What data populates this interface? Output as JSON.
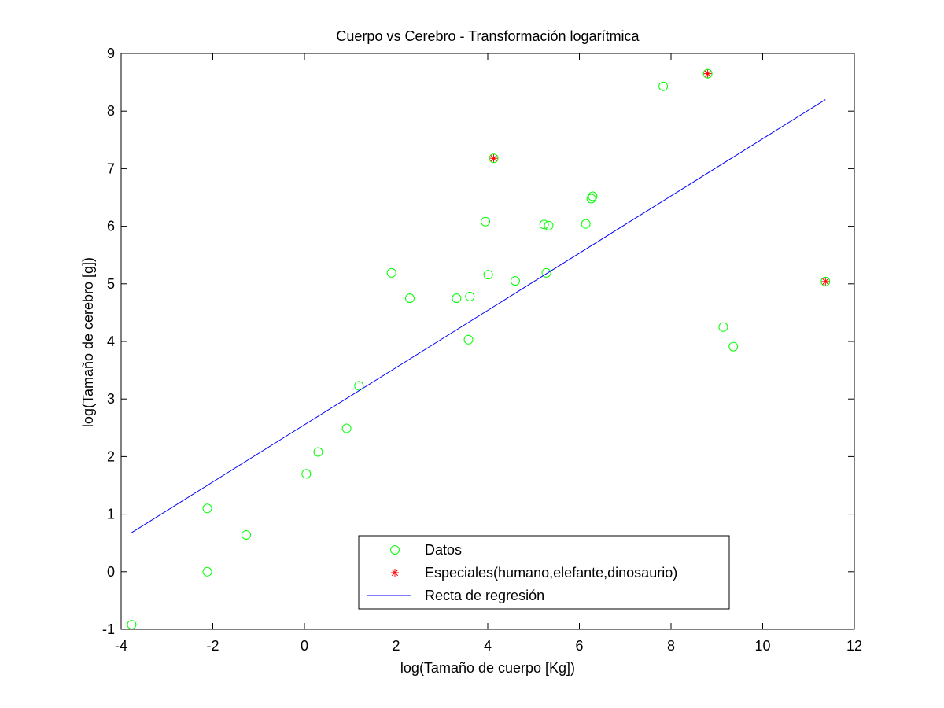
{
  "chart_data": {
    "type": "scatter",
    "title": "Cuerpo vs Cerebro - Transformación logarítmica",
    "xlabel": "log(Tamaño de cuerpo [Kg])",
    "ylabel": "log(Tamaño de cerebro [g])",
    "xlim": [
      -4,
      12
    ],
    "ylim": [
      -1,
      9
    ],
    "xticks": [
      -4,
      -2,
      0,
      2,
      4,
      6,
      8,
      10,
      12
    ],
    "yticks": [
      -1,
      0,
      1,
      2,
      3,
      4,
      5,
      6,
      7,
      8,
      9
    ],
    "grid": false,
    "legend_position": "bottom-center",
    "series": [
      {
        "name": "Datos",
        "kind": "scatter",
        "marker": "circle",
        "color": "#00ff00",
        "points": [
          [
            -3.77,
            -0.92
          ],
          [
            -2.12,
            0.0
          ],
          [
            -2.12,
            1.1
          ],
          [
            -1.27,
            0.64
          ],
          [
            0.04,
            1.7
          ],
          [
            0.3,
            2.08
          ],
          [
            0.92,
            2.49
          ],
          [
            1.19,
            3.23
          ],
          [
            1.9,
            5.19
          ],
          [
            2.3,
            4.75
          ],
          [
            3.32,
            4.75
          ],
          [
            3.58,
            4.03
          ],
          [
            3.61,
            4.78
          ],
          [
            3.95,
            6.08
          ],
          [
            4.01,
            5.16
          ],
          [
            4.13,
            7.18
          ],
          [
            4.6,
            5.05
          ],
          [
            5.23,
            6.03
          ],
          [
            5.28,
            5.19
          ],
          [
            5.33,
            6.01
          ],
          [
            6.14,
            6.04
          ],
          [
            6.26,
            6.48
          ],
          [
            6.29,
            6.52
          ],
          [
            7.83,
            8.43
          ],
          [
            8.8,
            8.65
          ],
          [
            9.14,
            4.25
          ],
          [
            9.36,
            3.91
          ],
          [
            11.37,
            5.04
          ]
        ]
      },
      {
        "name": "Especiales(humano,elefante,dinosaurio)",
        "kind": "scatter",
        "marker": "asterisk",
        "color": "#ff0000",
        "points": [
          [
            4.13,
            7.18
          ],
          [
            8.8,
            8.65
          ],
          [
            11.37,
            5.04
          ]
        ]
      },
      {
        "name": "Recta de regresión",
        "kind": "line",
        "color": "#0000ff",
        "points": [
          [
            -3.77,
            0.68
          ],
          [
            11.37,
            8.2
          ]
        ]
      }
    ]
  }
}
